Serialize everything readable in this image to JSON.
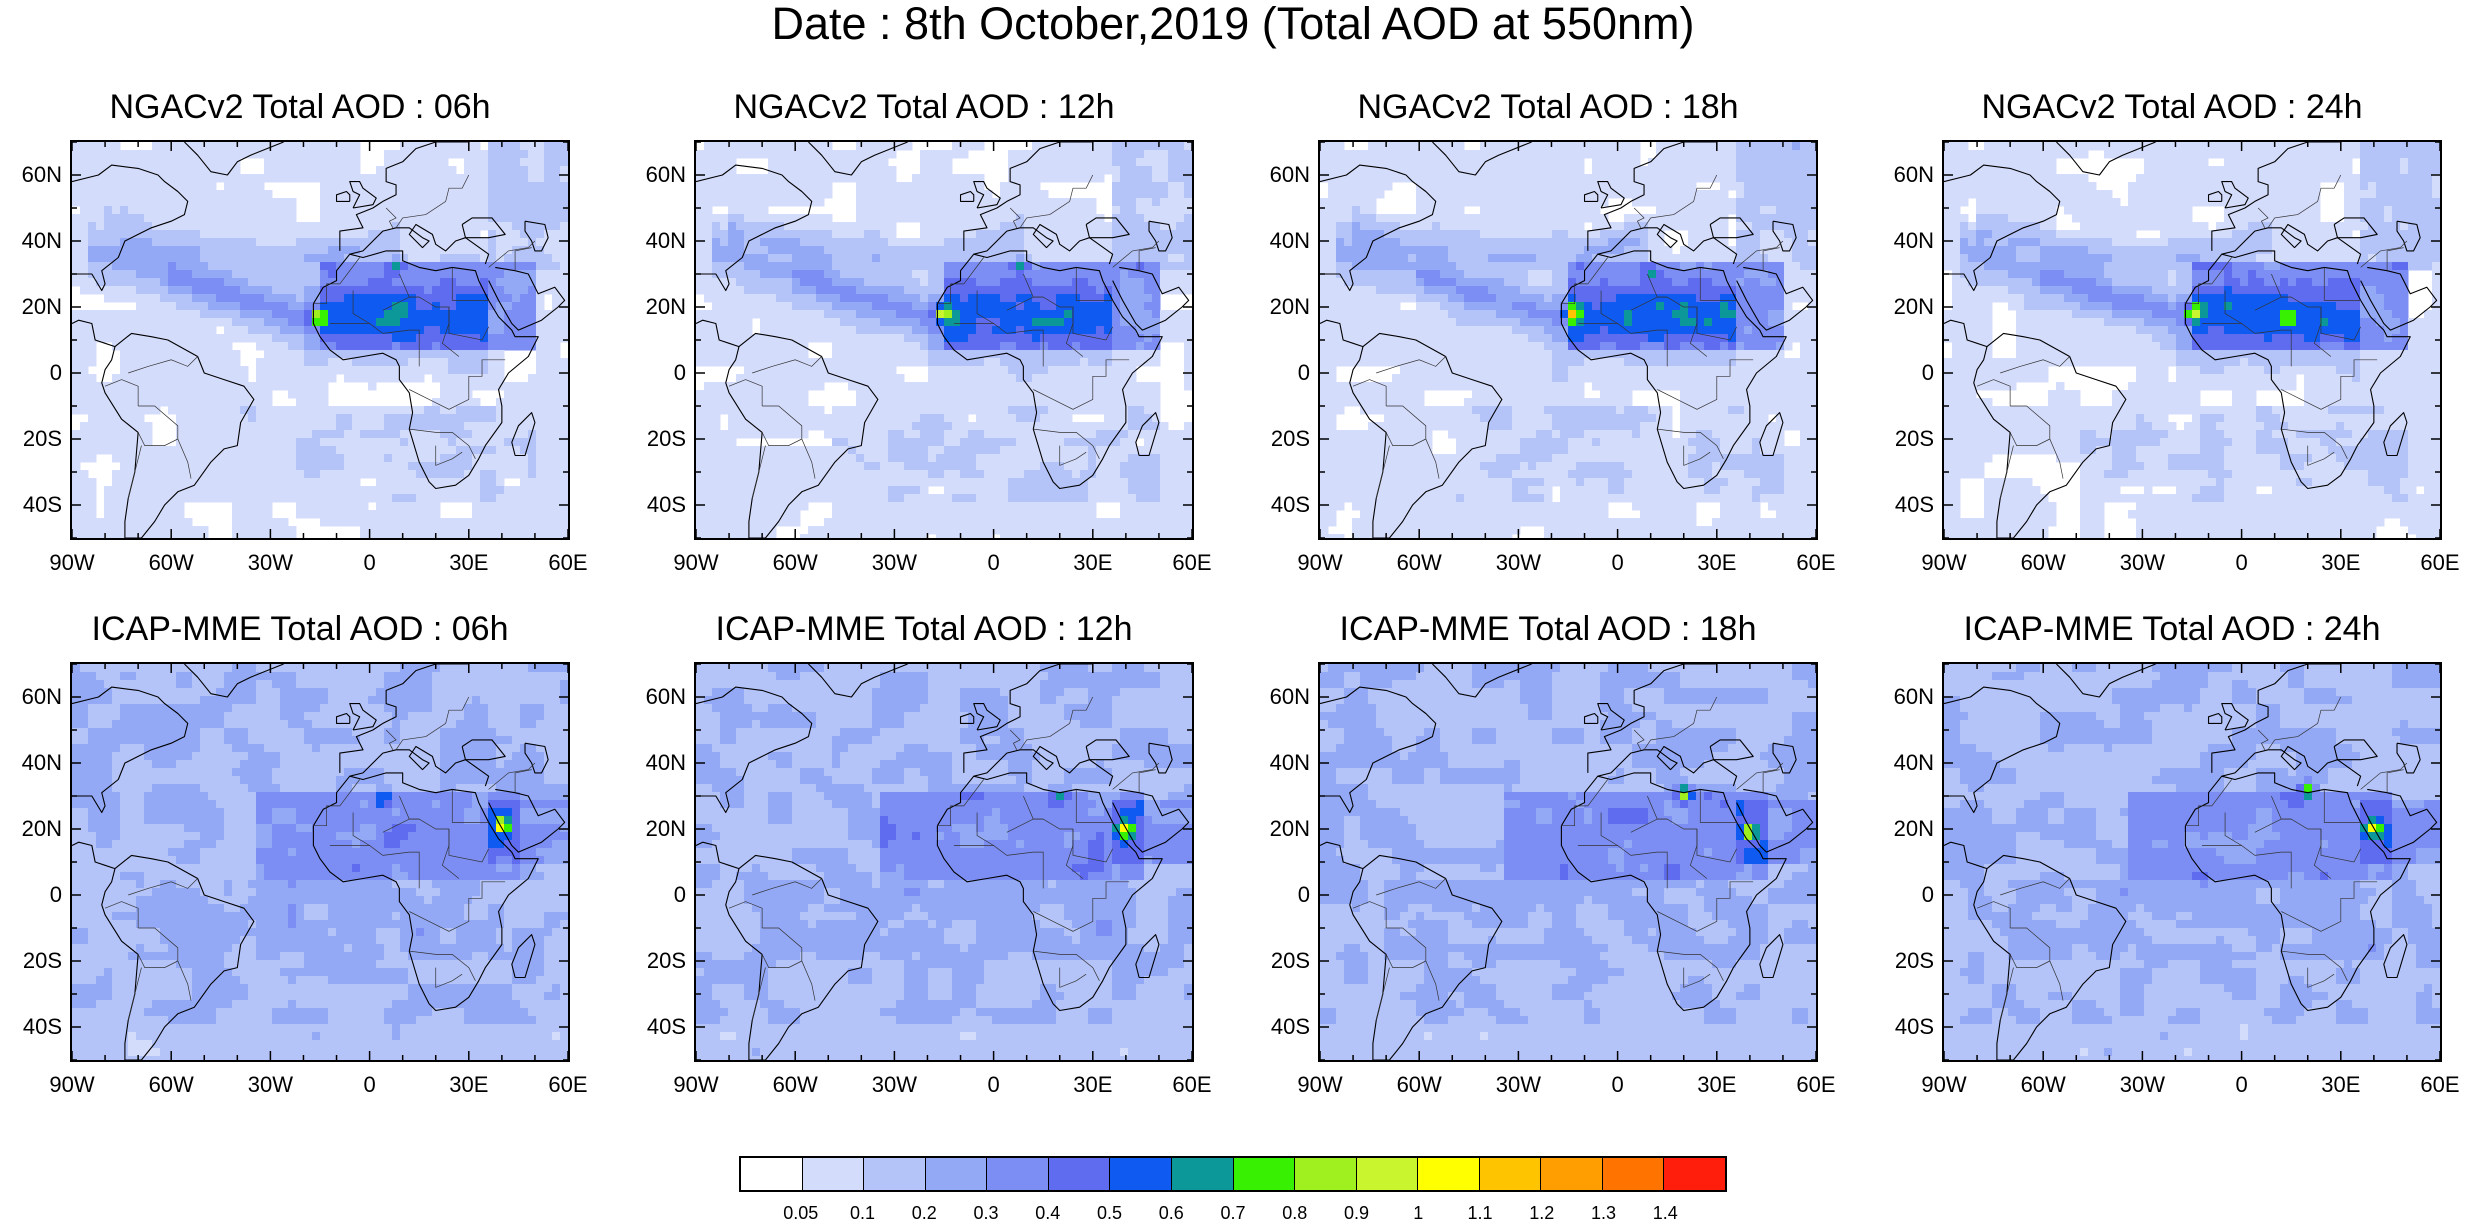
{
  "title": "Date : 8th October,2019 (Total AOD at 550nm)",
  "latitude_ticks": [
    "60N",
    "40N",
    "20N",
    "0",
    "20S",
    "40S"
  ],
  "longitude_ticks": [
    "90W",
    "60W",
    "30W",
    "0",
    "30E",
    "60E"
  ],
  "panels": [
    {
      "title": "NGACv2 Total AOD : 06h",
      "model": "NGACv2",
      "hour": "06h",
      "dust_max": "0.9",
      "hotspots": [
        {
          "lon": -16,
          "lat": 17,
          "value": 0.85
        },
        {
          "lon": 8,
          "lat": 33,
          "value": 0.5
        }
      ]
    },
    {
      "title": "NGACv2 Total AOD : 12h",
      "model": "NGACv2",
      "hour": "12h",
      "dust_max": "0.9",
      "hotspots": [
        {
          "lon": -16,
          "lat": 18,
          "value": 0.85
        },
        {
          "lon": 8,
          "lat": 33,
          "value": 0.55
        }
      ]
    },
    {
      "title": "NGACv2 Total AOD : 18h",
      "model": "NGACv2",
      "hour": "18h",
      "dust_max": "0.8",
      "hotspots": [
        {
          "lon": -14,
          "lat": 18,
          "value": 0.8
        },
        {
          "lon": 10,
          "lat": 30,
          "value": 0.45
        }
      ]
    },
    {
      "title": "NGACv2 Total AOD : 24h",
      "model": "NGACv2",
      "hour": "24h",
      "dust_max": "0.8",
      "hotspots": [
        {
          "lon": -15,
          "lat": 18,
          "value": 0.75
        },
        {
          "lon": 14,
          "lat": 17,
          "value": 0.5
        }
      ]
    },
    {
      "title": "ICAP-MME Total AOD : 06h",
      "model": "ICAP-MME",
      "hour": "06h",
      "dust_max": "0.9",
      "hotspots": [
        {
          "lon": 40,
          "lat": 21,
          "value": 0.85
        },
        {
          "lon": 4,
          "lat": 29,
          "value": 0.6
        }
      ]
    },
    {
      "title": "ICAP-MME Total AOD : 12h",
      "model": "ICAP-MME",
      "hour": "12h",
      "dust_max": "0.9",
      "hotspots": [
        {
          "lon": 40,
          "lat": 20,
          "value": 0.85
        },
        {
          "lon": 20,
          "lat": 30,
          "value": 0.5
        }
      ]
    },
    {
      "title": "ICAP-MME Total AOD : 18h",
      "model": "ICAP-MME",
      "hour": "18h",
      "dust_max": "0.9",
      "hotspots": [
        {
          "lon": 40,
          "lat": 19,
          "value": 0.85
        },
        {
          "lon": 20,
          "lat": 31,
          "value": 0.8
        }
      ]
    },
    {
      "title": "ICAP-MME Total AOD : 24h",
      "model": "ICAP-MME",
      "hour": "24h",
      "dust_max": "0.9",
      "hotspots": [
        {
          "lon": 40,
          "lat": 20,
          "value": 0.85
        },
        {
          "lon": 20,
          "lat": 32,
          "value": 0.75
        }
      ]
    }
  ],
  "colorbar": {
    "labels": [
      "0.05",
      "0.1",
      "0.2",
      "0.3",
      "0.4",
      "0.5",
      "0.6",
      "0.7",
      "0.8",
      "0.9",
      "1",
      "1.1",
      "1.2",
      "1.3",
      "1.4"
    ],
    "colors": [
      "#ffffff",
      "#d4dcfb",
      "#b4c3f8",
      "#94a9f6",
      "#7c8ef3",
      "#5f6cef",
      "#0f5af0",
      "#0c9898",
      "#37f002",
      "#9ff01e",
      "#c9f52f",
      "#ffff00",
      "#ffc400",
      "#ff9e00",
      "#ff7300",
      "#ff1e0b"
    ]
  }
}
